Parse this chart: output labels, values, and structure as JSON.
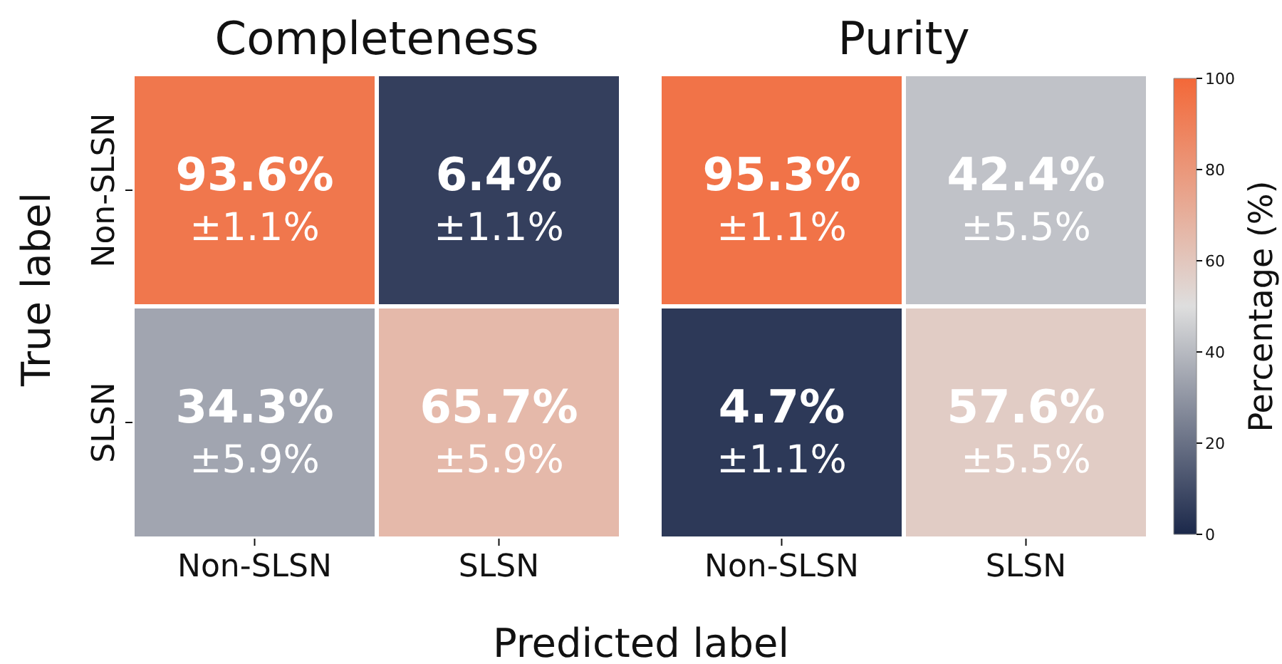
{
  "chart_data": [
    {
      "type": "heatmap",
      "title": "Completeness",
      "xlabel": "Predicted label",
      "ylabel": "True label",
      "categories": [
        "Non-SLSN",
        "SLSN"
      ],
      "y_categories": [
        "Non-SLSN",
        "SLSN"
      ],
      "cells": [
        [
          93.6,
          6.4
        ],
        [
          34.3,
          65.7
        ]
      ],
      "cell_labels": [
        [
          "93.6%",
          "6.4%"
        ],
        [
          "34.3%",
          "65.7%"
        ]
      ],
      "data_labels": true,
      "annotations": [
        "±1.1%",
        "±1.1%",
        "±5.9%",
        "±5.9%"
      ]
    },
    {
      "type": "heatmap",
      "title": "Purity",
      "categories": [
        "Non-SLSN",
        "SLSN"
      ],
      "y_categories": [
        "Non-SLSN",
        "SLSN"
      ],
      "cells": [
        [
          95.3,
          42.4
        ],
        [
          4.7,
          57.6
        ]
      ],
      "cell_labels": [
        [
          "95.3%",
          "42.4%"
        ],
        [
          "4.7%",
          "57.6%"
        ]
      ],
      "data_labels": true,
      "annotations": [
        "±1.1%",
        "±5.5%",
        "±1.1%",
        "±5.5%"
      ],
      "tick_labels": "x",
      "clabel": "Percentage (%)",
      "clim": [
        0,
        100
      ],
      "cticks": [
        0,
        20,
        40,
        60,
        80,
        100
      ]
    }
  ]
}
